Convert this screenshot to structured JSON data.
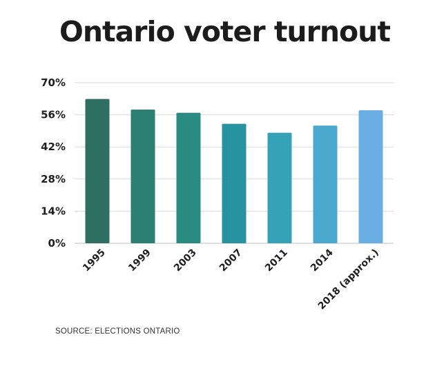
{
  "chart_data": {
    "type": "bar",
    "title": "Ontario voter turnout",
    "xlabel": "",
    "ylabel": "",
    "categories": [
      "1995",
      "1999",
      "2003",
      "2007",
      "2011",
      "2014",
      "2018 (approx.)"
    ],
    "values": [
      62.9,
      58.3,
      56.9,
      52.1,
      48.2,
      51.3,
      58.0
    ],
    "ylim": [
      0,
      70
    ],
    "yticks": [
      0,
      14,
      28,
      42,
      56,
      70
    ],
    "ytick_labels": [
      "0%",
      "14%",
      "28%",
      "42%",
      "56%",
      "70%"
    ],
    "grid": true,
    "legend": "none",
    "bar_colors": [
      "#2e6f61",
      "#2b7f73",
      "#2a8b82",
      "#2893a0",
      "#35a2b7",
      "#4aa8ce",
      "#6aafe3"
    ]
  },
  "source": "SOURCE: ELECTIONS ONTARIO"
}
